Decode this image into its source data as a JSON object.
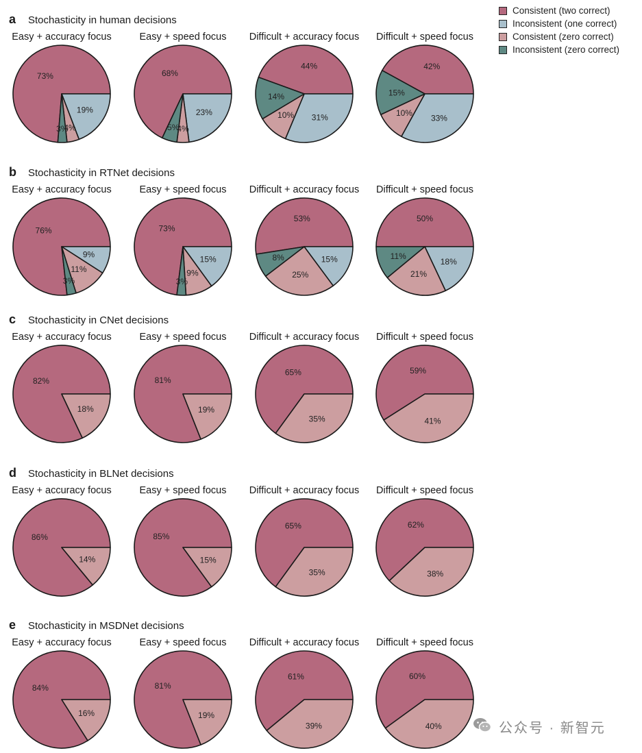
{
  "colors": {
    "consistent_two": "#b5697e",
    "inconsistent_one": "#a8bfcb",
    "consistent_zero": "#cc9ea0",
    "inconsistent_zero": "#5e8983",
    "outline": "#1a1a1a"
  },
  "legend": [
    {
      "label": "Consistent (two correct)",
      "color": "#b5697e"
    },
    {
      "label": "Inconsistent (one correct)",
      "color": "#a8bfcb"
    },
    {
      "label": "Consistent (zero correct)",
      "color": "#cc9ea0"
    },
    {
      "label": "Inconsistent (zero correct)",
      "color": "#5e8983"
    }
  ],
  "watermark": {
    "text": "公众号 · 新智元",
    "icon": "wechat-icon"
  },
  "chart_data": [
    {
      "type": "pie",
      "panel": "a",
      "title": "Stochasticity in human decisions",
      "charts": [
        {
          "title": "Easy + accuracy focus",
          "values": [
            73,
            19,
            4,
            3
          ],
          "labels": [
            "73%",
            "19%",
            "4%",
            "3%"
          ]
        },
        {
          "title": "Easy + speed focus",
          "values": [
            68,
            23,
            4,
            5
          ],
          "labels": [
            "68%",
            "23%",
            "4%",
            "5%"
          ]
        },
        {
          "title": "Difficult + accuracy focus",
          "values": [
            44,
            31,
            10,
            14
          ],
          "labels": [
            "44%",
            "31%",
            "10%",
            "14%"
          ]
        },
        {
          "title": "Difficult + speed focus",
          "values": [
            42,
            33,
            10,
            15
          ],
          "labels": [
            "42%",
            "33%",
            "10%",
            "15%"
          ]
        }
      ]
    },
    {
      "type": "pie",
      "panel": "b",
      "title": "Stochasticity in RTNet decisions",
      "charts": [
        {
          "title": "Easy + accuracy focus",
          "values": [
            76,
            9,
            11,
            3
          ],
          "labels": [
            "76%",
            "9%",
            "11%",
            "3%"
          ]
        },
        {
          "title": "Easy + speed focus",
          "values": [
            73,
            15,
            9,
            3
          ],
          "labels": [
            "73%",
            "15%",
            "9%",
            "3%"
          ]
        },
        {
          "title": "Difficult + accuracy focus",
          "values": [
            53,
            15,
            25,
            8
          ],
          "labels": [
            "53%",
            "15%",
            "25%",
            "8%"
          ]
        },
        {
          "title": "Difficult + speed focus",
          "values": [
            50,
            18,
            21,
            11
          ],
          "labels": [
            "50%",
            "18%",
            "21%",
            "11%"
          ]
        }
      ]
    },
    {
      "type": "pie",
      "panel": "c",
      "title": "Stochasticity in CNet decisions",
      "charts": [
        {
          "title": "Easy + accuracy focus",
          "values": [
            82,
            0,
            18,
            0
          ],
          "labels": [
            "82%",
            "",
            "18%",
            ""
          ]
        },
        {
          "title": "Easy + speed focus",
          "values": [
            81,
            0,
            19,
            0
          ],
          "labels": [
            "81%",
            "",
            "19%",
            ""
          ]
        },
        {
          "title": "Difficult + accuracy focus",
          "values": [
            65,
            0,
            35,
            0
          ],
          "labels": [
            "65%",
            "",
            "35%",
            ""
          ]
        },
        {
          "title": "Difficult + speed focus",
          "values": [
            59,
            0,
            41,
            0
          ],
          "labels": [
            "59%",
            "",
            "41%",
            ""
          ]
        }
      ]
    },
    {
      "type": "pie",
      "panel": "d",
      "title": "Stochasticity in BLNet decisions",
      "charts": [
        {
          "title": "Easy + accuracy focus",
          "values": [
            86,
            0,
            14,
            0
          ],
          "labels": [
            "86%",
            "",
            "14%",
            ""
          ]
        },
        {
          "title": "Easy + speed focus",
          "values": [
            85,
            0,
            15,
            0
          ],
          "labels": [
            "85%",
            "",
            "15%",
            ""
          ]
        },
        {
          "title": "Difficult + accuracy focus",
          "values": [
            65,
            0,
            35,
            0
          ],
          "labels": [
            "65%",
            "",
            "35%",
            ""
          ]
        },
        {
          "title": "Difficult + speed focus",
          "values": [
            62,
            0,
            38,
            0
          ],
          "labels": [
            "62%",
            "",
            "38%",
            ""
          ]
        }
      ]
    },
    {
      "type": "pie",
      "panel": "e",
      "title": "Stochasticity in MSDNet decisions",
      "charts": [
        {
          "title": "Easy + accuracy focus",
          "values": [
            84,
            0,
            16,
            0
          ],
          "labels": [
            "84%",
            "",
            "16%",
            ""
          ]
        },
        {
          "title": "Easy + speed focus",
          "values": [
            81,
            0,
            19,
            0
          ],
          "labels": [
            "81%",
            "",
            "19%",
            ""
          ]
        },
        {
          "title": "Difficult + accuracy focus",
          "values": [
            61,
            0,
            39,
            0
          ],
          "labels": [
            "61%",
            "",
            "39%",
            ""
          ]
        },
        {
          "title": "Difficult + speed focus",
          "values": [
            60,
            0,
            40,
            0
          ],
          "labels": [
            "60%",
            "",
            "40%",
            ""
          ]
        }
      ]
    }
  ]
}
